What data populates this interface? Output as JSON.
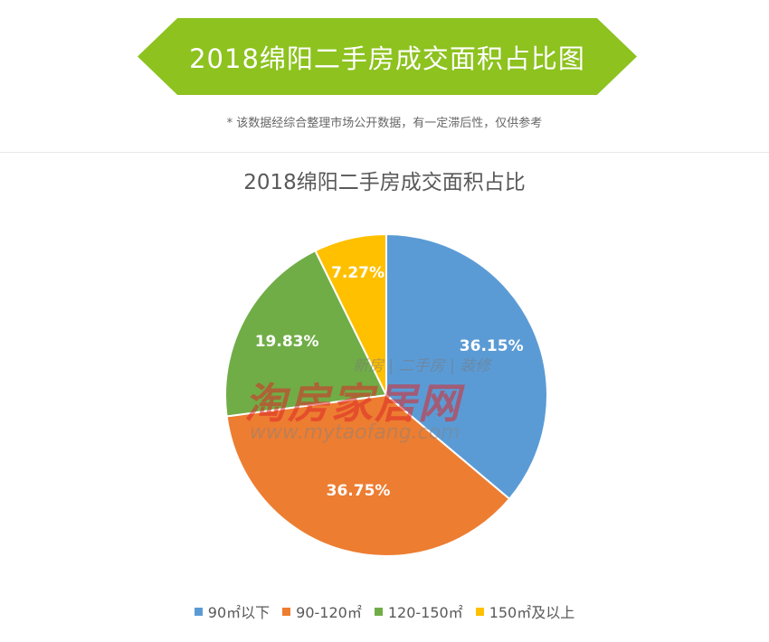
{
  "header": {
    "banner_title": "2018绵阳二手房成交面积占比图",
    "note": "* 该数据经综合整理市场公开数据，有一定滞后性，仅供参考"
  },
  "watermark": {
    "main": "淘房家居网",
    "tag": "新房 | 二手房 | 装修",
    "url": "www.mytaofang.com"
  },
  "chart_data": {
    "type": "pie",
    "title": "2018绵阳二手房成交面积占比",
    "categories": [
      "90㎡以下",
      "90-120㎡",
      "120-150㎡",
      "150㎡及以上"
    ],
    "values": [
      36.15,
      36.75,
      19.83,
      7.27
    ],
    "labels": [
      "36.15%",
      "36.75%",
      "19.83%",
      "7.27%"
    ],
    "colors": [
      "#5b9bd5",
      "#ed7d31",
      "#70ad47",
      "#ffc000"
    ],
    "legend_position": "bottom"
  }
}
